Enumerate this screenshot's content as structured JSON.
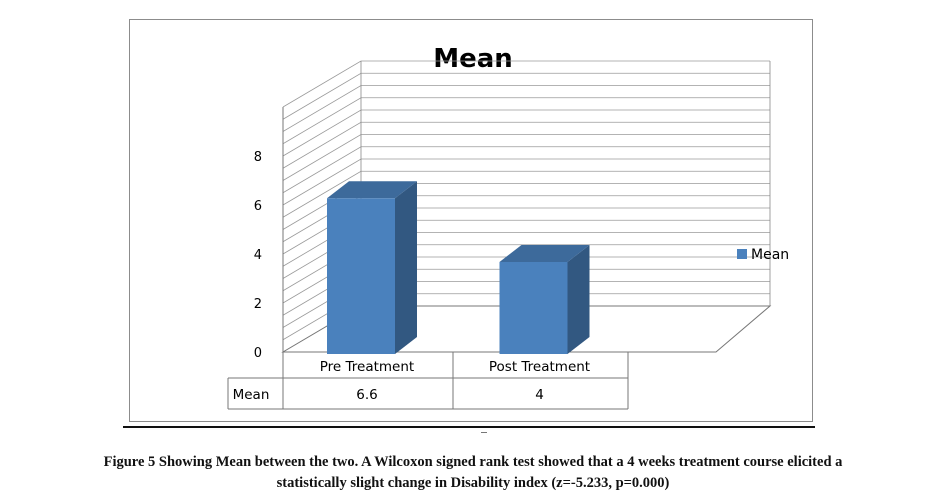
{
  "chart_data": {
    "type": "bar",
    "title": "Mean",
    "categories": [
      "Pre Treatment",
      "Post Treatment"
    ],
    "series": [
      {
        "name": "Mean",
        "values": [
          6.6,
          4
        ],
        "value_labels": [
          "6.6",
          "4"
        ],
        "color": "#4a81bd"
      }
    ],
    "ylim": [
      0,
      8
    ],
    "yticks": [
      "0",
      "2",
      "4",
      "6",
      "8"
    ],
    "grid": true,
    "three_d": true,
    "legend_position": "right",
    "data_table": {
      "row_header": "Mean"
    }
  },
  "caption": {
    "line1": "Figure 5 Showing Mean between the two. A Wilcoxon signed rank test showed that a 4 weeks treatment course elicited a",
    "line2": "statistically slight change in Disability index (z=-5.233, p=0.000)"
  }
}
